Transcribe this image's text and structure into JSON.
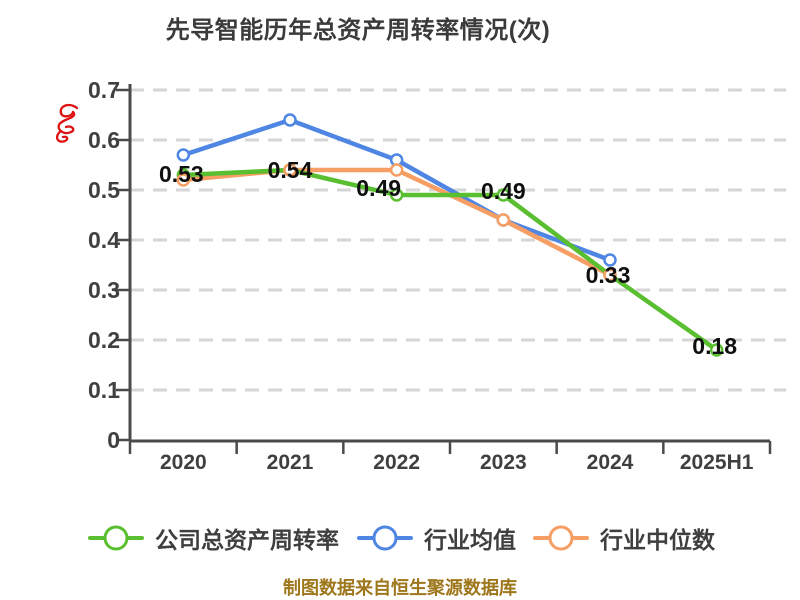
{
  "title": "先导智能历年总资产周转率情况(次)",
  "footer_credit": "制图数据来自恒生聚源数据库",
  "colors": {
    "company_green": "#5abf30",
    "industry_avg_blue": "#4f86e3",
    "industry_median_orange": "#f79e64",
    "grid": "#d6d6d6",
    "axis": "#4a4a4a",
    "value_label": "#0f0f0f",
    "title_text": "#3b3b3b",
    "footer_text": "#9e771c",
    "annotation_red": "#dd1111"
  },
  "chart_data": {
    "type": "line",
    "title": "先导智能历年总资产周转率情况(次)",
    "categories": [
      "2020",
      "2021",
      "2022",
      "2023",
      "2024",
      "2025H1"
    ],
    "series": [
      {
        "key": "company-total-asset-turnover",
        "name": "公司总资产周转率",
        "color": "#5abf30",
        "values": [
          0.53,
          0.54,
          0.49,
          0.49,
          0.33,
          0.18
        ],
        "point_labels": [
          "0.53",
          "0.54",
          "0.49",
          "0.49",
          "0.33",
          "0.18"
        ]
      },
      {
        "key": "industry-average",
        "name": "行业均值",
        "color": "#4f86e3",
        "values": [
          0.57,
          0.64,
          0.56,
          0.44,
          0.36,
          null
        ]
      },
      {
        "key": "industry-median",
        "name": "行业中位数",
        "color": "#f79e64",
        "values": [
          0.52,
          0.54,
          0.54,
          0.44,
          0.33,
          null
        ]
      }
    ],
    "ylim": [
      0,
      0.7
    ],
    "ytick_step": 0.1,
    "ytick_labels": [
      "0",
      "0.1",
      "0.2",
      "0.3",
      "0.4",
      "0.5",
      "0.6",
      "0.7"
    ],
    "grid": "dashed-horizontal",
    "legend_position": "bottom",
    "marker": "open-circle"
  }
}
